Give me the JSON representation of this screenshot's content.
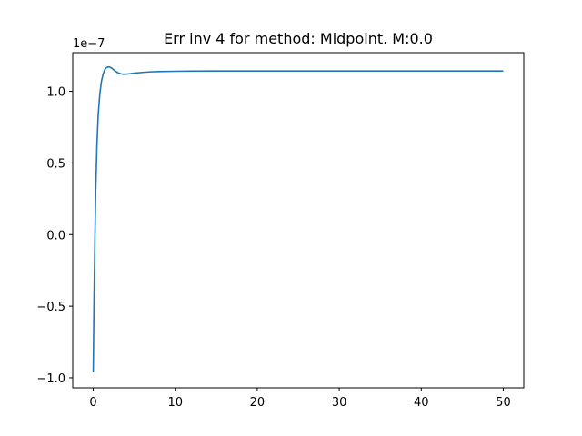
{
  "chart_data": {
    "type": "line",
    "title": "Err inv 4 for method: Midpoint. M:0.0",
    "xlabel": "",
    "ylabel": "",
    "y_offset_label": "1e−7",
    "xlim": [
      -2.5,
      52.5
    ],
    "ylim": [
      -1.07,
      1.27
    ],
    "x_ticks": [
      0,
      10,
      20,
      30,
      40,
      50
    ],
    "x_tick_labels": [
      "0",
      "10",
      "20",
      "30",
      "40",
      "50"
    ],
    "y_ticks": [
      -1.0,
      -0.5,
      0.0,
      0.5,
      1.0
    ],
    "y_tick_labels": [
      "−1.0",
      "−0.5",
      "0.0",
      "0.5",
      "1.0"
    ],
    "grid": false,
    "series": [
      {
        "color": "#1f77b4",
        "x": [
          0,
          0.1,
          0.2,
          0.3,
          0.45,
          0.6,
          0.8,
          1.0,
          1.2,
          1.4,
          1.6,
          1.8,
          2.0,
          2.3,
          2.6,
          3.0,
          3.5,
          4.0,
          4.5,
          5.0,
          6.0,
          7.0,
          8.0,
          10.0,
          12.0,
          15.0,
          20.0,
          30.0,
          40.0,
          50.0
        ],
        "y": [
          -0.96,
          -0.45,
          -0.05,
          0.3,
          0.62,
          0.83,
          0.98,
          1.07,
          1.12,
          1.15,
          1.165,
          1.17,
          1.17,
          1.16,
          1.145,
          1.13,
          1.12,
          1.12,
          1.123,
          1.127,
          1.132,
          1.136,
          1.138,
          1.14,
          1.141,
          1.142,
          1.142,
          1.142,
          1.142,
          1.142
        ]
      }
    ]
  }
}
